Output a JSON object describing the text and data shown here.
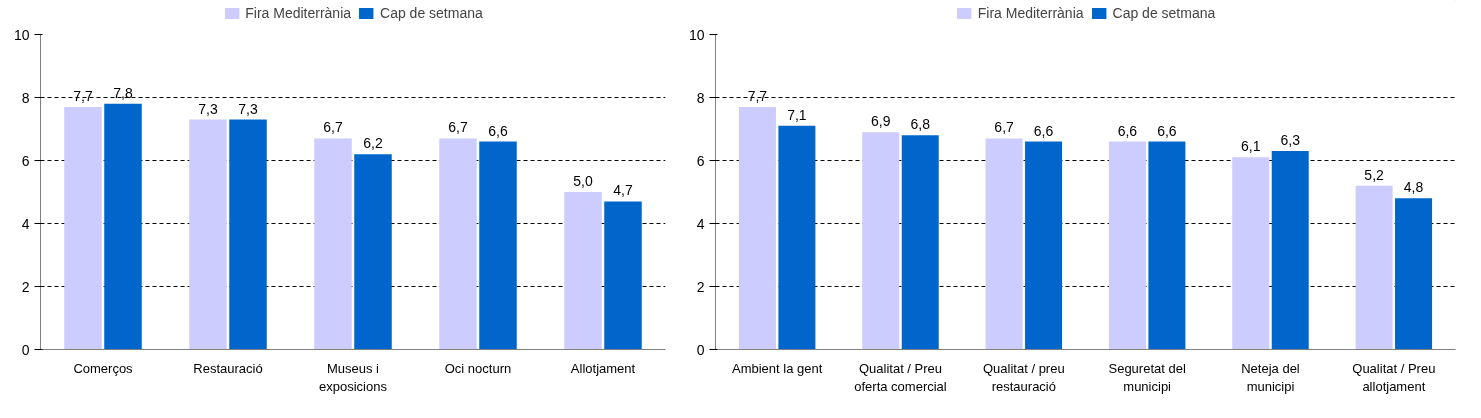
{
  "chart_data": [
    {
      "type": "bar",
      "categories": [
        "Comerços",
        "Restauració",
        "Museus i exposicions",
        "Oci nocturn",
        "Allotjament"
      ],
      "series": [
        {
          "name": "Fira Mediterrània",
          "color": "#ccccff",
          "values": [
            7.7,
            7.3,
            6.7,
            6.7,
            5.0
          ],
          "value_labels": [
            "7,7",
            "7,3",
            "6,7",
            "6,7",
            "5,0"
          ]
        },
        {
          "name": "Cap de setmana",
          "color": "#0066cc",
          "values": [
            7.8,
            7.3,
            6.2,
            6.6,
            4.7
          ],
          "value_labels": [
            "7,8",
            "7,3",
            "6,2",
            "6,6",
            "4,7"
          ]
        }
      ],
      "ylim": [
        0,
        10
      ],
      "yticks": [
        0,
        2,
        4,
        6,
        8,
        10
      ],
      "grid": "y",
      "legend": "top"
    },
    {
      "type": "bar",
      "categories": [
        "Ambient la gent",
        "Qualitat / Preu oferta comercial",
        "Qualitat / preu restauració",
        "Seguretat del municipi",
        "Neteja del municipi",
        "Qualitat / Preu allotjament"
      ],
      "series": [
        {
          "name": "Fira Mediterrània",
          "color": "#ccccff",
          "values": [
            7.7,
            6.9,
            6.7,
            6.6,
            6.1,
            5.2
          ],
          "value_labels": [
            "7,7",
            "6,9",
            "6,7",
            "6,6",
            "6,1",
            "5,2"
          ]
        },
        {
          "name": "Cap de setmana",
          "color": "#0066cc",
          "values": [
            7.1,
            6.8,
            6.6,
            6.6,
            6.3,
            4.8
          ],
          "value_labels": [
            "7,1",
            "6,8",
            "6,6",
            "6,6",
            "6,3",
            "4,8"
          ]
        }
      ],
      "ylim": [
        0,
        10
      ],
      "yticks": [
        0,
        2,
        4,
        6,
        8,
        10
      ],
      "grid": "y",
      "legend": "top"
    }
  ]
}
